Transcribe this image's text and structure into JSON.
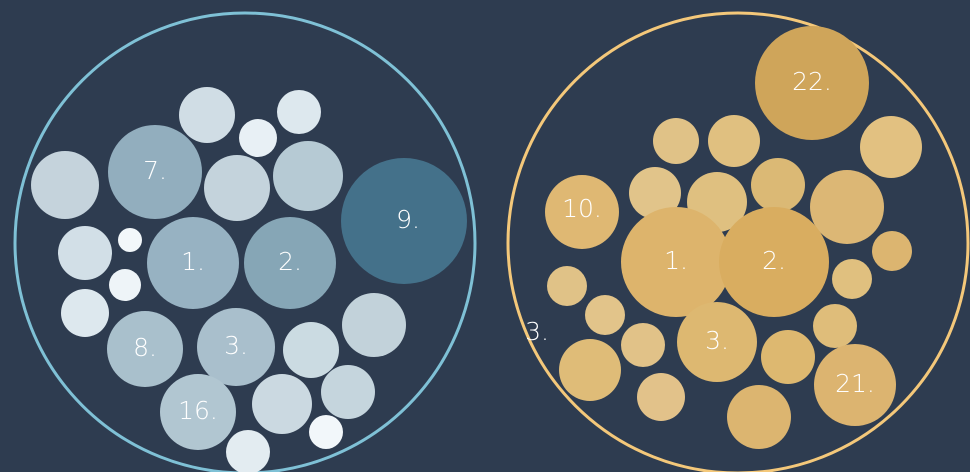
{
  "left": {
    "nodes": [
      {
        "label": "7."
      },
      {
        "label": "9."
      },
      {
        "label": "1."
      },
      {
        "label": "2."
      },
      {
        "label": "8."
      },
      {
        "label": "3."
      },
      {
        "label": "16."
      }
    ]
  },
  "right": {
    "nodes": [
      {
        "label": "22."
      },
      {
        "label": "10."
      },
      {
        "label": "1."
      },
      {
        "label": "2."
      },
      {
        "label": "3."
      },
      {
        "label": "21."
      },
      {
        "label": "3."
      }
    ]
  }
}
